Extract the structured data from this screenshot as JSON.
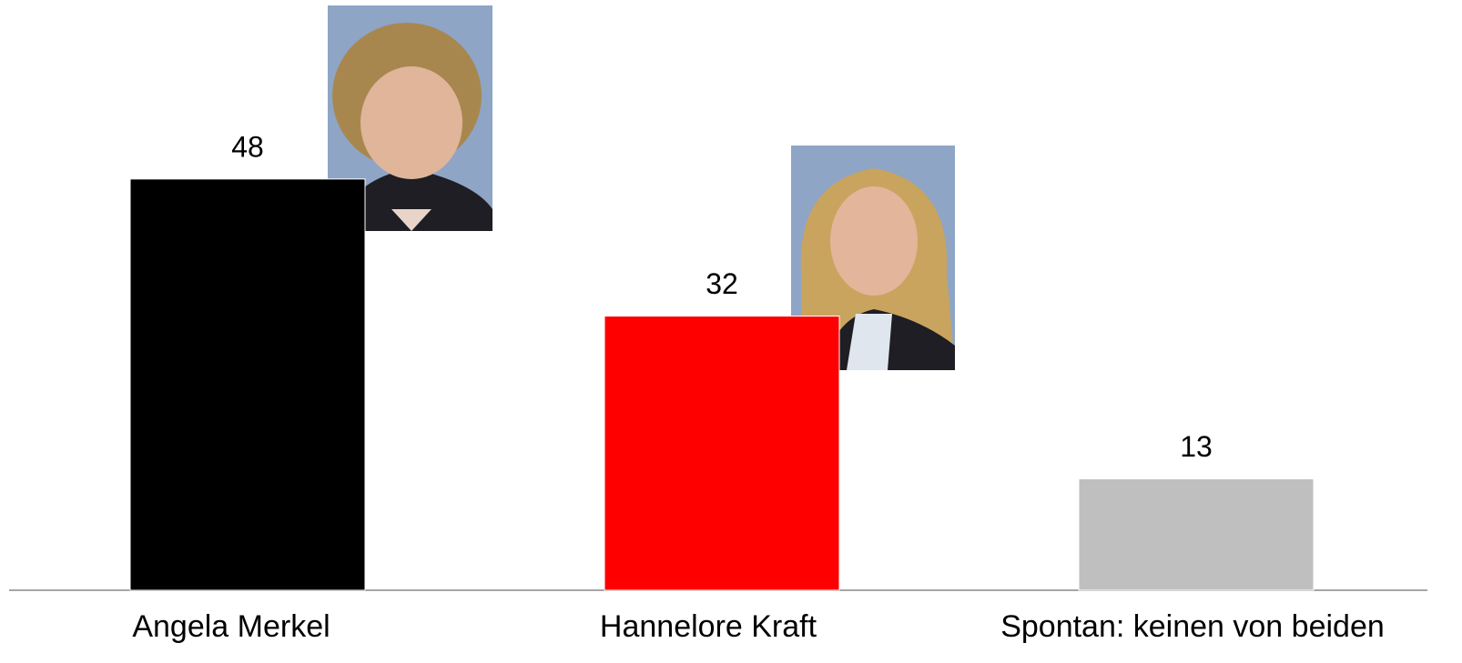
{
  "chart_data": {
    "type": "bar",
    "categories": [
      "Angela Merkel",
      "Hannelore Kraft",
      "Spontan: keinen von beiden"
    ],
    "values": [
      48,
      32,
      13
    ],
    "colors": [
      "#000000",
      "#ff0000",
      "#bfbfbf"
    ]
  }
}
